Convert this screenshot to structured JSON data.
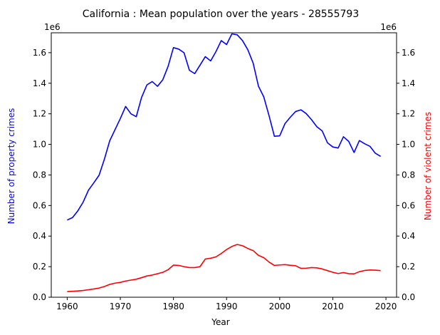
{
  "chart_data": {
    "type": "line",
    "title": "California : Mean population over the years - 28555793",
    "xlabel": "Year",
    "ylabel_left": "Number of property crimes",
    "ylabel_right": "Number of violent crimes",
    "offset_label_left": "1e6",
    "offset_label_right": "1e6",
    "xlim": [
      1957,
      2022
    ],
    "ylim_left": [
      0,
      1.73
    ],
    "ylim_right": [
      0,
      1.73
    ],
    "y_scale_factor": 1000000,
    "x_ticks": [
      1960,
      1970,
      1980,
      1990,
      2000,
      2010,
      2020
    ],
    "y_ticks_left": [
      "0.0",
      "0.2",
      "0.4",
      "0.6",
      "0.8",
      "1.0",
      "1.2",
      "1.4",
      "1.6"
    ],
    "y_ticks_right": [
      "0.0",
      "0.2",
      "0.4",
      "0.6",
      "0.8",
      "1.0",
      "1.2",
      "1.4",
      "1.6"
    ],
    "grid": false,
    "x": [
      1960,
      1961,
      1962,
      1963,
      1964,
      1965,
      1966,
      1967,
      1968,
      1969,
      1970,
      1971,
      1972,
      1973,
      1974,
      1975,
      1976,
      1977,
      1978,
      1979,
      1980,
      1981,
      1982,
      1983,
      1984,
      1985,
      1986,
      1987,
      1988,
      1989,
      1990,
      1991,
      1992,
      1993,
      1994,
      1995,
      1996,
      1997,
      1998,
      1999,
      2000,
      2001,
      2002,
      2003,
      2004,
      2005,
      2006,
      2007,
      2008,
      2009,
      2010,
      2011,
      2012,
      2013,
      2014,
      2015,
      2016,
      2017,
      2018,
      2019
    ],
    "series": [
      {
        "axis": "left",
        "color": "#0000ff",
        "values": [
          0.505,
          0.521,
          0.565,
          0.622,
          0.7,
          0.748,
          0.798,
          0.903,
          1.023,
          1.096,
          1.169,
          1.248,
          1.2,
          1.181,
          1.307,
          1.389,
          1.411,
          1.38,
          1.423,
          1.511,
          1.633,
          1.623,
          1.599,
          1.485,
          1.463,
          1.518,
          1.574,
          1.546,
          1.607,
          1.679,
          1.653,
          1.723,
          1.717,
          1.679,
          1.619,
          1.532,
          1.381,
          1.311,
          1.187,
          1.053,
          1.056,
          1.136,
          1.178,
          1.215,
          1.226,
          1.201,
          1.161,
          1.115,
          1.088,
          1.01,
          0.983,
          0.976,
          1.05,
          1.019,
          0.947,
          1.025,
          1.004,
          0.987,
          0.942,
          0.921
        ]
      },
      {
        "axis": "right",
        "color": "#ff0000",
        "values": [
          0.037,
          0.039,
          0.041,
          0.044,
          0.049,
          0.054,
          0.06,
          0.07,
          0.084,
          0.092,
          0.097,
          0.106,
          0.112,
          0.118,
          0.128,
          0.139,
          0.145,
          0.154,
          0.163,
          0.18,
          0.21,
          0.208,
          0.2,
          0.194,
          0.194,
          0.2,
          0.25,
          0.255,
          0.264,
          0.286,
          0.312,
          0.332,
          0.345,
          0.337,
          0.319,
          0.305,
          0.274,
          0.259,
          0.23,
          0.208,
          0.211,
          0.213,
          0.209,
          0.206,
          0.189,
          0.19,
          0.194,
          0.192,
          0.185,
          0.174,
          0.163,
          0.155,
          0.161,
          0.154,
          0.153,
          0.167,
          0.175,
          0.178,
          0.177,
          0.174
        ]
      }
    ]
  }
}
